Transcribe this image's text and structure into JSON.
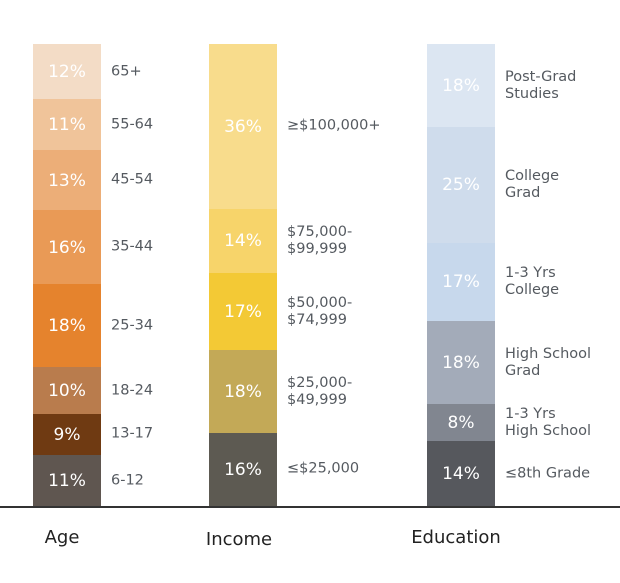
{
  "chart_data": {
    "type": "bar",
    "stacked": true,
    "title": "",
    "grid": false,
    "ylim": [
      0,
      100
    ],
    "categories": [
      "Age",
      "Income",
      "Education"
    ],
    "groups": [
      {
        "name": "Age",
        "segments": [
          {
            "label": "65+",
            "value": 12,
            "display": "12%",
            "color": "#f3dcc6"
          },
          {
            "label": "55-64",
            "value": 11,
            "display": "11%",
            "color": "#f0c49a"
          },
          {
            "label": "45-54",
            "value": 13,
            "display": "13%",
            "color": "#ecae78"
          },
          {
            "label": "35-44",
            "value": 16,
            "display": "16%",
            "color": "#e99a56"
          },
          {
            "label": "25-34",
            "value": 18,
            "display": "18%",
            "color": "#e5832d"
          },
          {
            "label": "18-24",
            "value": 10,
            "display": "10%",
            "color": "#b97c4d"
          },
          {
            "label": "13-17",
            "value": 9,
            "display": "9%",
            "color": "#6f3a12"
          },
          {
            "label": "6-12",
            "value": 11,
            "display": "11%",
            "color": "#5f5650"
          }
        ]
      },
      {
        "name": "Income",
        "segments": [
          {
            "label": "≥$100,000+",
            "value": 36,
            "display": "36%",
            "color": "#f8dc8c"
          },
          {
            "label": "$75,000-\n$99,999",
            "value": 14,
            "display": "14%",
            "color": "#f7d46a"
          },
          {
            "label": "$50,000-\n$74,999",
            "value": 17,
            "display": "17%",
            "color": "#f3c935"
          },
          {
            "label": "$25,000-\n$49,999",
            "value": 18,
            "display": "18%",
            "color": "#c3a957"
          },
          {
            "label": "≤$25,000",
            "value": 16,
            "display": "16%",
            "color": "#5d5a52"
          }
        ]
      },
      {
        "name": "Education",
        "segments": [
          {
            "label": "Post-Grad\nStudies",
            "value": 18,
            "display": "18%",
            "color": "#dce6f2"
          },
          {
            "label": "College\nGrad",
            "value": 25,
            "display": "25%",
            "color": "#cfdcec"
          },
          {
            "label": "1-3 Yrs\nCollege",
            "value": 17,
            "display": "17%",
            "color": "#c7d8ec"
          },
          {
            "label": "High School\nGrad",
            "value": 18,
            "display": "18%",
            "color": "#a3abb9"
          },
          {
            "label": "1-3 Yrs\nHigh School",
            "value": 8,
            "display": "8%",
            "color": "#818690"
          },
          {
            "label": "≤8th Grade",
            "value": 14,
            "display": "14%",
            "color": "#56585d"
          }
        ]
      }
    ]
  }
}
